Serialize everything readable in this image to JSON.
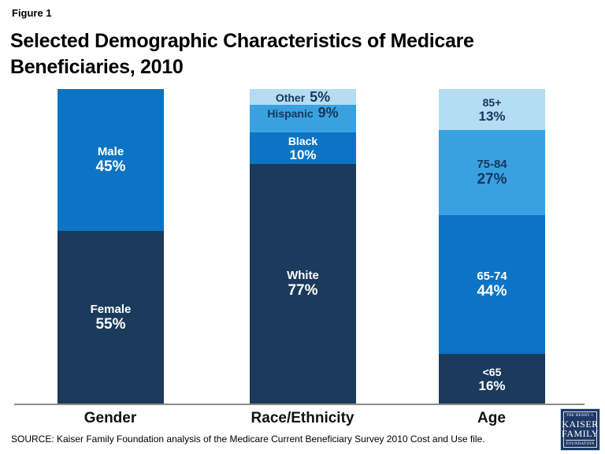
{
  "header": {
    "figure_label": "Figure 1",
    "title": "Selected Demographic Characteristics of Medicare Beneficiaries, 2010"
  },
  "chart_data": {
    "type": "bar",
    "stacked": true,
    "orientation": "vertical",
    "value_unit": "%",
    "total_per_bar": 100,
    "title": "Selected Demographic Characteristics of Medicare Beneficiaries, 2010",
    "xlabel": "",
    "ylabel": "",
    "legend": "none",
    "categories": [
      "Gender",
      "Race/Ethnicity",
      "Age"
    ],
    "palette": {
      "navy": "#1b3a5c",
      "medium_blue": "#0b74c4",
      "sky_blue": "#39a1e0",
      "pale_blue": "#b4dcf2",
      "dark_label": "#17365d",
      "light_label": "#ffffff"
    },
    "bars": [
      {
        "category": "Gender",
        "segments_top_to_bottom": [
          {
            "label": "Male",
            "value": 45,
            "display": "45%",
            "color": "#0b74c4",
            "text_color": "#ffffff",
            "label_inline": false,
            "tight": false
          },
          {
            "label": "Female",
            "value": 55,
            "display": "55%",
            "color": "#1b3a5c",
            "text_color": "#ffffff",
            "label_inline": false,
            "tight": false
          }
        ]
      },
      {
        "category": "Race/Ethnicity",
        "segments_top_to_bottom": [
          {
            "label": "Other",
            "value": 5,
            "display": "5%",
            "color": "#b4dcf2",
            "text_color": "#17365d",
            "label_inline": true,
            "tight": false
          },
          {
            "label": "Hispanic",
            "value": 9,
            "display": "9%",
            "color": "#39a1e0",
            "text_color": "#17365d",
            "label_inline": true,
            "tight": false
          },
          {
            "label": "Black",
            "value": 10,
            "display": "10%",
            "color": "#0b74c4",
            "text_color": "#ffffff",
            "label_inline": false,
            "tight": true
          },
          {
            "label": "White",
            "value": 77,
            "display": "77%",
            "color": "#1b3a5c",
            "text_color": "#ffffff",
            "label_inline": false,
            "tight": false
          }
        ]
      },
      {
        "category": "Age",
        "segments_top_to_bottom": [
          {
            "label": "85+",
            "value": 13,
            "display": "13%",
            "color": "#b4dcf2",
            "text_color": "#17365d",
            "label_inline": false,
            "tight": true
          },
          {
            "label": "75-84",
            "value": 27,
            "display": "27%",
            "color": "#39a1e0",
            "text_color": "#17365d",
            "label_inline": false,
            "tight": false
          },
          {
            "label": "65-74",
            "value": 44,
            "display": "44%",
            "color": "#0b74c4",
            "text_color": "#ffffff",
            "label_inline": false,
            "tight": false
          },
          {
            "label": "<65",
            "value": 16,
            "display": "16%",
            "color": "#1b3a5c",
            "text_color": "#ffffff",
            "label_inline": false,
            "tight": true
          }
        ]
      }
    ]
  },
  "footer": {
    "source": "SOURCE: Kaiser Family Foundation analysis of the Medicare Current Beneficiary Survey 2010 Cost and Use file.",
    "logo": {
      "line1": "THE HENRY J.",
      "line2": "KAISER",
      "line3": "FAMILY",
      "line4": "FOUNDATION"
    }
  }
}
